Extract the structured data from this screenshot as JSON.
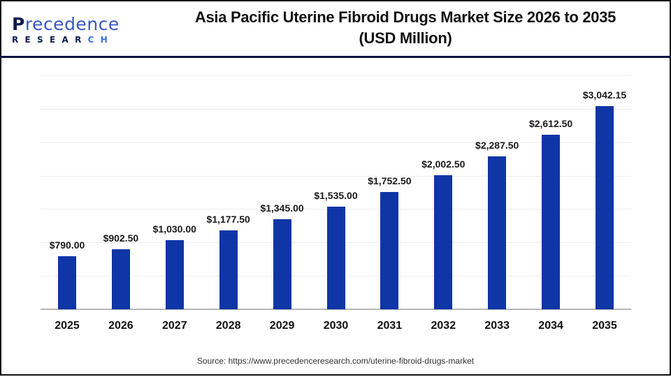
{
  "brand": {
    "logo_top_first": "P",
    "logo_top_rest": "recedence",
    "logo_bottom_main": "RESEAR",
    "logo_bottom_accent": "CH",
    "colors": {
      "navy": "#0d1b4c",
      "blue": "#3a56c8"
    }
  },
  "header": {
    "title_line1": "Asia Pacific Uterine Fibroid Drugs Market Size 2026 to 2035",
    "title_line2": "(USD Million)"
  },
  "footer": {
    "source": "Source: https://www.precedenceresearch.com/uterine-fibroid-drugs-market"
  },
  "chart_data": {
    "type": "bar",
    "title": "Asia Pacific Uterine Fibroid Drugs Market Size 2026 to 2035 (USD Million)",
    "xlabel": "",
    "ylabel": "USD Million",
    "categories": [
      "2025",
      "2026",
      "2027",
      "2028",
      "2029",
      "2030",
      "2031",
      "2032",
      "2033",
      "2034",
      "2035"
    ],
    "values": [
      790.0,
      902.5,
      1030.0,
      1177.5,
      1345.0,
      1535.0,
      1752.5,
      2002.5,
      2287.5,
      2612.5,
      3042.15
    ],
    "labels": [
      "$790.00",
      "$902.50",
      "$1,030.00",
      "$1,177.50",
      "$1,345.00",
      "$1,535.00",
      "$1,752.50",
      "$2,002.50",
      "$2,287.50",
      "$2,612.50",
      "$3,042.15"
    ],
    "ylim": [
      0,
      3500
    ],
    "grid": true,
    "grid_step": 500,
    "legend": "none",
    "bar_color": "#0f35a6"
  }
}
